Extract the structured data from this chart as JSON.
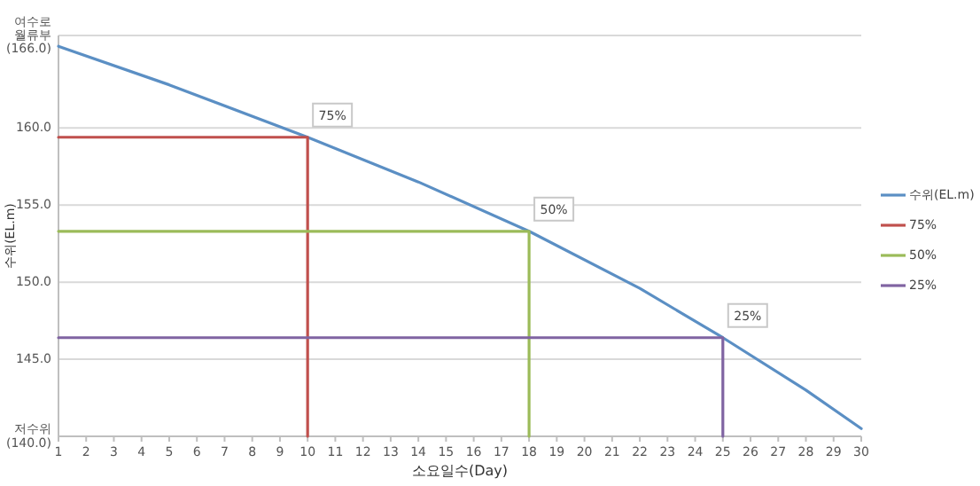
{
  "chart_data": {
    "type": "line",
    "xlabel": "소요일수(Day)",
    "ylabel": "수위(EL.m)",
    "xlim": [
      1,
      30
    ],
    "xticks": [
      1,
      2,
      3,
      4,
      5,
      6,
      7,
      8,
      9,
      10,
      11,
      12,
      13,
      14,
      15,
      16,
      17,
      18,
      19,
      20,
      21,
      22,
      23,
      24,
      25,
      26,
      27,
      28,
      29,
      30
    ],
    "ylim": [
      140,
      166
    ],
    "yticks": [
      {
        "value": 140,
        "label": "저수위\n(140.0)"
      },
      {
        "value": 145,
        "label": "145.0"
      },
      {
        "value": 150,
        "label": "150.0"
      },
      {
        "value": 155,
        "label": "155.0"
      },
      {
        "value": 160,
        "label": "160.0"
      },
      {
        "value": 166,
        "label": "여수로\n월류부\n(166.0)"
      }
    ],
    "grid": "y",
    "legend": "right",
    "marker": "none",
    "line_style": "solid",
    "series": [
      {
        "name": "수위(EL.m)",
        "color": "#5b8fc4",
        "x": [
          1,
          5,
          10,
          14,
          18,
          22,
          25,
          28,
          30
        ],
        "values": [
          165.3,
          162.8,
          159.4,
          156.5,
          153.3,
          149.6,
          146.4,
          143.0,
          140.5
        ]
      },
      {
        "name": "75%",
        "color": "#c0504d",
        "x": [
          1,
          10,
          10
        ],
        "values": [
          159.4,
          159.4,
          140
        ]
      },
      {
        "name": "50%",
        "color": "#9bbb59",
        "x": [
          1,
          18,
          18
        ],
        "values": [
          153.3,
          153.3,
          140
        ]
      },
      {
        "name": "25%",
        "color": "#8064a2",
        "x": [
          1,
          25,
          25
        ],
        "values": [
          146.4,
          146.4,
          140
        ]
      }
    ],
    "annotations": [
      {
        "text": "75%",
        "x": 10,
        "y": 159.4
      },
      {
        "text": "50%",
        "x": 18,
        "y": 153.3
      },
      {
        "text": "25%",
        "x": 25,
        "y": 146.4
      }
    ]
  }
}
